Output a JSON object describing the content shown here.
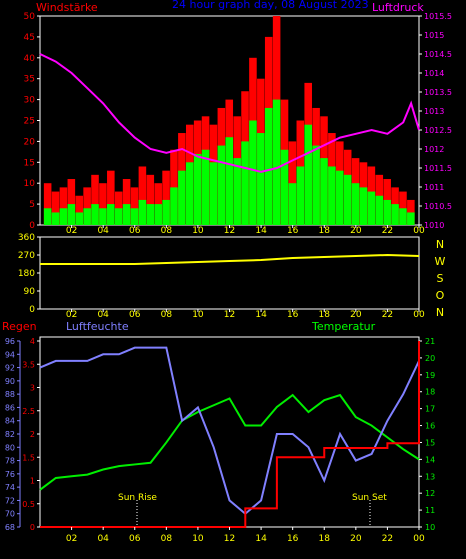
{
  "header": {
    "left_label": "Windstärke",
    "title": "24 hour graph day, 08 August 2023",
    "right_label": "Luftdruck"
  },
  "top_chart": {
    "y_left": {
      "ticks": [
        "0",
        "5",
        "10",
        "15",
        "20",
        "25",
        "30",
        "35",
        "40",
        "45",
        "50"
      ],
      "min": 0,
      "max": 50
    },
    "y_right": {
      "ticks": [
        "1010",
        "1010.5",
        "1011",
        "1011.5",
        "1012",
        "1012.5",
        "1013",
        "1013.5",
        "1014",
        "1014.5",
        "1015",
        "1015.5"
      ],
      "min": 1010,
      "max": 1015.5
    }
  },
  "mid_chart": {
    "y_left": {
      "ticks": [
        "0",
        "90",
        "180",
        "270",
        "360"
      ],
      "min": 0,
      "max": 360
    },
    "compass": [
      "N",
      "W",
      "S",
      "O",
      "N"
    ]
  },
  "bottom_chart": {
    "labels": {
      "rain": "Regen",
      "humidity": "Luftfeuchte",
      "temperature": "Temperatur"
    },
    "y_rain": {
      "ticks": [
        "0",
        "0.5",
        "1",
        "1.5",
        "2",
        "2.5",
        "3",
        "3.5",
        "4"
      ],
      "min": 0,
      "max": 4
    },
    "y_humidity": {
      "ticks": [
        "68",
        "70",
        "72",
        "74",
        "76",
        "78",
        "80",
        "82",
        "84",
        "86",
        "88",
        "90",
        "92",
        "94",
        "96"
      ],
      "min": 68,
      "max": 96
    },
    "y_temp": {
      "ticks": [
        "10",
        "11",
        "12",
        "13",
        "14",
        "15",
        "16",
        "17",
        "18",
        "19",
        "20",
        "21"
      ],
      "min": 10,
      "max": 21
    },
    "annotations": {
      "sunrise": "Sun Rise",
      "sunset": "Sun Set"
    }
  },
  "x_axis": {
    "ticks": [
      "02",
      "04",
      "06",
      "08",
      "10",
      "12",
      "14",
      "16",
      "18",
      "20",
      "22",
      "00"
    ]
  },
  "colors": {
    "wind_gust": "#ff0000",
    "wind_avg": "#00ff00",
    "pressure": "#ff00ff",
    "direction": "#ffff00",
    "rain": "#ff0000",
    "humidity": "#8080ff",
    "temperature": "#00ee00",
    "axis": "#ffffff",
    "header_left": "#ff0000",
    "header_title": "#0000ff",
    "header_right": "#ff00ff"
  },
  "chart_data": [
    {
      "type": "bar",
      "title": "24 hour graph day, 08 August 2023",
      "ylabel": "Windstärke",
      "x": [
        0.5,
        1,
        1.5,
        2,
        2.5,
        3,
        3.5,
        4,
        4.5,
        5,
        5.5,
        6,
        6.5,
        7,
        7.5,
        8,
        8.5,
        9,
        9.5,
        10,
        10.5,
        11,
        11.5,
        12,
        12.5,
        13,
        13.5,
        14,
        14.5,
        15,
        15.5,
        16,
        16.5,
        17,
        17.5,
        18,
        18.5,
        19,
        19.5,
        20,
        20.5,
        21,
        21.5,
        22,
        22.5,
        23,
        23.5
      ],
      "series": [
        {
          "name": "Windstärke",
          "values": [
            10,
            8,
            9,
            11,
            7,
            9,
            12,
            10,
            13,
            8,
            11,
            9,
            14,
            12,
            10,
            13,
            18,
            22,
            24,
            25,
            26,
            24,
            28,
            30,
            26,
            32,
            40,
            35,
            45,
            50,
            30,
            20,
            25,
            34,
            28,
            26,
            22,
            20,
            18,
            16,
            15,
            14,
            12,
            11,
            9,
            8,
            6
          ]
        },
        {
          "name": "Windstärke mean",
          "values": [
            4,
            3,
            4,
            5,
            3,
            4,
            5,
            4,
            5,
            4,
            5,
            4,
            6,
            5,
            5,
            6,
            9,
            13,
            15,
            17,
            18,
            15,
            19,
            21,
            16,
            20,
            25,
            22,
            28,
            30,
            18,
            10,
            14,
            24,
            19,
            16,
            14,
            13,
            12,
            10,
            9,
            8,
            7,
            6,
            5,
            4,
            3
          ]
        }
      ],
      "ylim": [
        0,
        50
      ]
    },
    {
      "type": "line",
      "ylabel": "Luftdruck",
      "x": [
        0,
        1,
        2,
        3,
        4,
        5,
        6,
        7,
        8,
        9,
        10,
        11,
        12,
        13,
        14,
        15,
        16,
        17,
        18,
        19,
        20,
        21,
        22,
        23,
        23.5,
        24
      ],
      "series": [
        {
          "name": "Luftdruck",
          "values": [
            1014.5,
            1014.3,
            1014.0,
            1013.6,
            1013.2,
            1012.7,
            1012.3,
            1012.0,
            1011.9,
            1012.0,
            1011.8,
            1011.7,
            1011.6,
            1011.5,
            1011.4,
            1011.5,
            1011.7,
            1011.9,
            1012.1,
            1012.3,
            1012.4,
            1012.5,
            1012.4,
            1012.7,
            1013.2,
            1012.5
          ]
        }
      ],
      "ylim": [
        1010,
        1015.5
      ]
    },
    {
      "type": "line",
      "x": [
        0,
        2,
        4,
        6,
        8,
        10,
        12,
        14,
        16,
        18,
        20,
        22,
        24
      ],
      "series": [
        {
          "name": "direction",
          "values": [
            225,
            225,
            225,
            225,
            230,
            235,
            240,
            245,
            255,
            260,
            265,
            270,
            265
          ]
        }
      ],
      "ylim": [
        0,
        360
      ]
    },
    {
      "type": "line",
      "ylabel": "Temperatur",
      "x": [
        0,
        1,
        2,
        3,
        4,
        5,
        6,
        7,
        8,
        9,
        10,
        11,
        12,
        13,
        14,
        15,
        16,
        17,
        18,
        19,
        20,
        21,
        22,
        23,
        24
      ],
      "series": [
        {
          "name": "Temperatur",
          "values": [
            12.2,
            12.9,
            13.0,
            13.1,
            13.4,
            13.6,
            13.7,
            13.8,
            15.0,
            16.3,
            16.8,
            17.2,
            17.6,
            16.0,
            16.0,
            17.1,
            17.8,
            16.8,
            17.5,
            17.8,
            16.5,
            16.0,
            15.3,
            14.6,
            14.0
          ]
        },
        {
          "name": "Luftfeuchte",
          "values": [
            92,
            93,
            93,
            93,
            94,
            94,
            95,
            95,
            95,
            84,
            86,
            80,
            72,
            70,
            72,
            82,
            82,
            80,
            75,
            82,
            78,
            79,
            84,
            88,
            93
          ]
        },
        {
          "name": "Regen",
          "values": [
            0,
            0,
            0,
            0,
            0,
            0,
            0,
            0,
            0,
            0,
            0,
            0,
            0,
            0.4,
            0.4,
            1.5,
            1.5,
            1.5,
            1.7,
            1.7,
            1.7,
            1.7,
            1.8,
            1.8,
            4.0
          ]
        }
      ]
    }
  ]
}
